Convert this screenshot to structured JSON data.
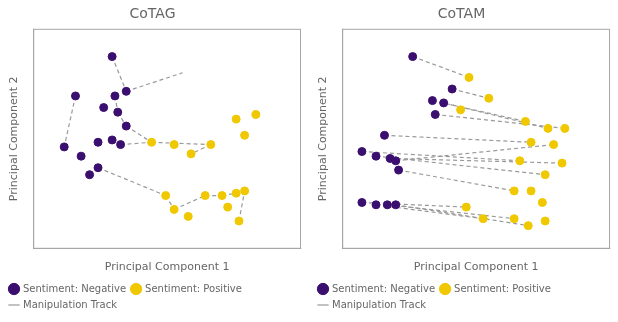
{
  "chart_data": [
    {
      "type": "scatter",
      "title": "CoTAG",
      "x_label": "Principal Component 1",
      "y_label": "Principal Component 2",
      "xlim": [
        0.05,
        1.0
      ],
      "ylim": [
        0.1,
        1.05
      ],
      "tick_labels": false,
      "grid": false,
      "legend": "lower left",
      "series": [
        {
          "name": "Sentiment: Negative",
          "color": "#3b0f6f",
          "marker": "circle",
          "x": [
            0.33,
            0.2,
            0.34,
            0.38,
            0.3,
            0.35,
            0.38,
            0.28,
            0.33,
            0.36,
            0.16,
            0.22,
            0.28,
            0.25
          ],
          "values": [
            0.93,
            0.76,
            0.76,
            0.78,
            0.71,
            0.69,
            0.63,
            0.56,
            0.57,
            0.55,
            0.54,
            0.5,
            0.45,
            0.42
          ]
        },
        {
          "name": "Sentiment: Positive",
          "color": "#f0c800",
          "marker": "circle",
          "x": [
            0.47,
            0.55,
            0.68,
            0.61,
            0.77,
            0.84,
            0.8,
            0.52,
            0.55,
            0.6,
            0.66,
            0.72,
            0.74,
            0.77,
            0.8,
            0.78
          ],
          "values": [
            0.56,
            0.55,
            0.55,
            0.51,
            0.66,
            0.68,
            0.59,
            0.33,
            0.27,
            0.24,
            0.33,
            0.33,
            0.28,
            0.34,
            0.35,
            0.22
          ]
        },
        {
          "name": "Manipulation Track",
          "type": "line",
          "line_style": "dashed",
          "color": "#999999",
          "x": [
            0.33,
            0.38,
            null,
            0.38,
            0.58,
            null,
            0.2,
            0.16,
            null,
            0.34,
            0.35,
            null,
            0.35,
            0.38,
            null,
            0.38,
            0.47,
            null,
            0.36,
            0.47,
            null,
            0.47,
            0.68,
            null,
            0.68,
            0.61,
            null,
            0.28,
            0.52,
            null,
            0.52,
            0.55,
            null,
            0.55,
            0.66,
            null,
            0.66,
            0.72,
            null,
            0.72,
            0.77,
            null,
            0.77,
            0.8,
            null,
            0.78,
            0.8
          ],
          "values": [
            0.93,
            0.78,
            null,
            0.78,
            0.86,
            null,
            0.76,
            0.54,
            null,
            0.76,
            0.69,
            null,
            0.69,
            0.63,
            null,
            0.63,
            0.56,
            null,
            0.55,
            0.56,
            null,
            0.56,
            0.55,
            null,
            0.55,
            0.51,
            null,
            0.45,
            0.33,
            null,
            0.33,
            0.27,
            null,
            0.27,
            0.33,
            null,
            0.33,
            0.33,
            null,
            0.33,
            0.34,
            null,
            0.34,
            0.35,
            null,
            0.22,
            0.35
          ]
        }
      ]
    },
    {
      "type": "scatter",
      "title": "CoTAM",
      "x_label": "Principal Component 1",
      "y_label": "Principal Component 2",
      "xlim": [
        0.05,
        1.0
      ],
      "ylim": [
        0.1,
        1.05
      ],
      "tick_labels": false,
      "grid": false,
      "legend": "lower left",
      "series": [
        {
          "name": "Sentiment: Negative",
          "color": "#3b0f6f",
          "marker": "circle",
          "x": [
            0.3,
            0.44,
            0.37,
            0.41,
            0.38,
            0.2,
            0.12,
            0.17,
            0.22,
            0.24,
            0.25,
            0.12,
            0.17,
            0.21,
            0.24
          ],
          "values": [
            0.93,
            0.79,
            0.74,
            0.73,
            0.68,
            0.59,
            0.52,
            0.5,
            0.49,
            0.48,
            0.44,
            0.3,
            0.29,
            0.29,
            0.29
          ]
        },
        {
          "name": "Sentiment: Positive",
          "color": "#f0c800",
          "marker": "circle",
          "x": [
            0.5,
            0.57,
            0.47,
            0.7,
            0.78,
            0.84,
            0.72,
            0.8,
            0.68,
            0.77,
            0.83,
            0.66,
            0.72,
            0.76,
            0.49,
            0.55,
            0.66,
            0.71,
            0.77
          ],
          "values": [
            0.84,
            0.75,
            0.7,
            0.65,
            0.62,
            0.62,
            0.56,
            0.55,
            0.48,
            0.42,
            0.47,
            0.35,
            0.35,
            0.3,
            0.28,
            0.23,
            0.23,
            0.2,
            0.22
          ]
        },
        {
          "name": "Manipulation Track",
          "type": "line",
          "line_style": "dashed",
          "color": "#999999",
          "x": [
            0.3,
            0.5,
            null,
            0.44,
            0.57,
            null,
            0.37,
            0.7,
            null,
            0.41,
            0.78,
            null,
            0.38,
            0.84,
            null,
            0.2,
            0.72,
            null,
            0.12,
            0.68,
            null,
            0.17,
            0.77,
            null,
            0.22,
            0.83,
            null,
            0.24,
            0.8,
            null,
            0.25,
            0.66,
            null,
            0.12,
            0.49,
            null,
            0.17,
            0.55,
            null,
            0.21,
            0.66,
            null,
            0.24,
            0.71
          ],
          "values": [
            0.93,
            0.84,
            null,
            0.79,
            0.75,
            null,
            0.74,
            0.65,
            null,
            0.73,
            0.62,
            null,
            0.68,
            0.62,
            null,
            0.59,
            0.56,
            null,
            0.52,
            0.48,
            null,
            0.5,
            0.42,
            null,
            0.49,
            0.47,
            null,
            0.48,
            0.55,
            null,
            0.44,
            0.35,
            null,
            0.3,
            0.28,
            null,
            0.29,
            0.23,
            null,
            0.29,
            0.23,
            null,
            0.29,
            0.2
          ]
        }
      ]
    }
  ]
}
